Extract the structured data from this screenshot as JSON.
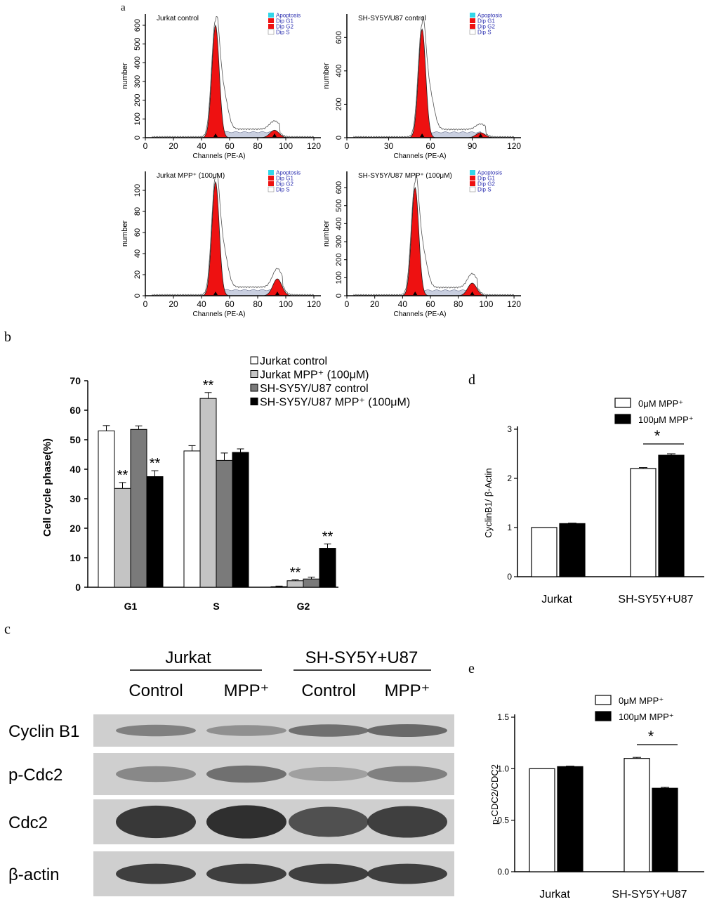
{
  "panel_labels": {
    "a": "a",
    "b": "b",
    "c": "c",
    "d": "d",
    "e": "e"
  },
  "chart_data": [
    {
      "panel": "a",
      "type": "area",
      "histograms": [
        {
          "title": "Jurkat control",
          "xlabel": "Channels (PE-A)",
          "ylabel": "number",
          "x_ticks": [
            0,
            20,
            40,
            60,
            80,
            100,
            120
          ],
          "y_ticks": [
            0,
            100,
            200,
            300,
            400,
            500,
            600
          ],
          "xlim": [
            0,
            125
          ],
          "ylim": [
            0,
            660
          ],
          "g1_peak": {
            "x": 50,
            "y": 600
          },
          "g2_peak": {
            "x": 92,
            "y": 40
          },
          "legend": [
            "Apoptosis",
            "Dip G1",
            "Dip G2",
            "Dip S"
          ]
        },
        {
          "title": "SH-SY5Y/U87 control",
          "xlabel": "Channels (PE-A)",
          "ylabel": "number",
          "x_ticks": [
            0,
            30,
            60,
            90,
            120
          ],
          "y_ticks": [
            0,
            200,
            400,
            600
          ],
          "xlim": [
            0,
            125
          ],
          "ylim": [
            0,
            740
          ],
          "g1_peak": {
            "x": 54,
            "y": 650
          },
          "g2_peak": {
            "x": 96,
            "y": 30
          },
          "legend": [
            "Apoptosis",
            "Dip G1",
            "Dip G2",
            "Dip S"
          ]
        },
        {
          "title": "Jurkat MPP⁺ (100μM)",
          "xlabel": "Channels (PE-A)",
          "ylabel": "number",
          "x_ticks": [
            0,
            20,
            40,
            60,
            80,
            100,
            120
          ],
          "y_ticks": [
            0,
            20,
            40,
            60,
            80,
            100
          ],
          "xlim": [
            0,
            125
          ],
          "ylim": [
            0,
            118
          ],
          "g1_peak": {
            "x": 50,
            "y": 108
          },
          "g2_peak": {
            "x": 94,
            "y": 16
          },
          "legend": [
            "Apoptosis",
            "Dip G1",
            "Dip G2",
            "Dip S"
          ]
        },
        {
          "title": "SH-SY5Y/U87 MPP⁺ (100μM)",
          "xlabel": "Channels (PE-A)",
          "ylabel": "number",
          "x_ticks": [
            0,
            20,
            40,
            60,
            80,
            100,
            120
          ],
          "y_ticks": [
            0,
            100,
            200,
            300,
            400,
            500,
            600
          ],
          "xlim": [
            0,
            125
          ],
          "ylim": [
            0,
            690
          ],
          "g1_peak": {
            "x": 49,
            "y": 600
          },
          "g2_peak": {
            "x": 90,
            "y": 70
          },
          "legend": [
            "Apoptosis",
            "Dip G1",
            "Dip G2",
            "Dip S"
          ]
        }
      ],
      "colors": {
        "g1": "#ee1111",
        "g2": "#ee1111",
        "apoptosis": "#33d6e8",
        "dipS": "#9aa4c0"
      }
    },
    {
      "panel": "b",
      "type": "bar",
      "categories": [
        "G1",
        "S",
        "G2"
      ],
      "ylabel": "Cell cycle phase(%)",
      "ylim": [
        0,
        70
      ],
      "y_ticks": [
        0,
        10,
        20,
        30,
        40,
        50,
        60,
        70
      ],
      "legend_position": "top-right",
      "series": [
        {
          "name": "Jurkat control",
          "values": [
            53,
            46.2,
            0.2
          ],
          "errors": [
            1.8,
            1.8,
            0.2
          ],
          "color": "#ffffff"
        },
        {
          "name": "Jurkat MPP⁺ (100μM)",
          "values": [
            33.5,
            64,
            2.2
          ],
          "errors": [
            2,
            2,
            0.3
          ],
          "color": "#c4c4c4"
        },
        {
          "name": "SH-SY5Y/U87 control",
          "values": [
            53.5,
            43,
            2.8
          ],
          "errors": [
            1.2,
            2.5,
            0.6
          ],
          "color": "#7a7a7a"
        },
        {
          "name": "SH-SY5Y/U87 MPP⁺ (100μM)",
          "values": [
            37.5,
            45.7,
            13.2
          ],
          "errors": [
            2,
            1.2,
            1.5
          ],
          "color": "#000000"
        }
      ],
      "annotations": [
        {
          "category": 0,
          "series": 1,
          "text": "**"
        },
        {
          "category": 0,
          "series": 3,
          "text": "**"
        },
        {
          "category": 1,
          "series": 1,
          "text": "**"
        },
        {
          "category": 2,
          "series": 1,
          "text": "**"
        },
        {
          "category": 2,
          "series": 3,
          "text": "**"
        }
      ]
    },
    {
      "panel": "c",
      "type": "table",
      "group_labels": [
        "Jurkat",
        "SH-SY5Y+U87"
      ],
      "lane_labels": [
        "Control",
        "MPP⁺",
        "Control",
        "MPP⁺"
      ],
      "row_labels": [
        "Cyclin B1",
        "p-Cdc2",
        "Cdc2",
        "β-actin"
      ],
      "band_intensity": [
        [
          0.45,
          0.35,
          0.55,
          0.6
        ],
        [
          0.4,
          0.55,
          0.25,
          0.45
        ],
        [
          0.9,
          0.95,
          0.75,
          0.85
        ],
        [
          0.85,
          0.85,
          0.85,
          0.85
        ]
      ]
    },
    {
      "panel": "d",
      "type": "bar",
      "categories": [
        "Jurkat",
        "SH-SY5Y+U87"
      ],
      "ylabel": "CyclinB1/ β-Actin",
      "ylim": [
        0,
        3
      ],
      "y_ticks": [
        0,
        1,
        2,
        3
      ],
      "series": [
        {
          "name": "0μM MPP⁺",
          "values": [
            1.0,
            2.2
          ],
          "errors": [
            0,
            0.02
          ],
          "color": "#ffffff"
        },
        {
          "name": "100μM MPP⁺",
          "values": [
            1.08,
            2.47
          ],
          "errors": [
            0.01,
            0.03
          ],
          "color": "#000000"
        }
      ],
      "significance": {
        "category": 1,
        "text": "*"
      }
    },
    {
      "panel": "e",
      "type": "bar",
      "categories": [
        "Jurkat",
        "SH-SY5Y+U87"
      ],
      "ylabel": "p-CDC2/CDC2",
      "ylim": [
        0,
        1.5
      ],
      "y_ticks": [
        "0.0",
        "0.5",
        "1.0",
        "1.5"
      ],
      "series": [
        {
          "name": "0μM MPP⁺",
          "values": [
            1.0,
            1.1
          ],
          "errors": [
            0,
            0.01
          ],
          "color": "#ffffff"
        },
        {
          "name": "100μM MPP⁺",
          "values": [
            1.02,
            0.81
          ],
          "errors": [
            0.005,
            0.01
          ],
          "color": "#000000"
        }
      ],
      "significance": {
        "category": 1,
        "text": "*"
      }
    }
  ]
}
